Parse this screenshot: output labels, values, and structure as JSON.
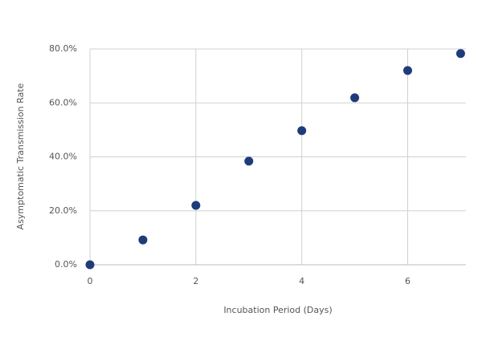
{
  "chart_data": {
    "type": "scatter",
    "x_label": "Incubation Period (Days)",
    "y_label": "Asymptomatic Transmission Rate",
    "series": [
      {
        "color": "#1f3c7a",
        "x": [
          0,
          1,
          2,
          3,
          4,
          5,
          6,
          7
        ],
        "values": [
          0,
          9.2,
          22.0,
          38.4,
          49.7,
          61.9,
          72.0,
          78.3
        ]
      }
    ],
    "xlim": [
      0,
      7.1
    ],
    "xticks": [
      0,
      2,
      4,
      6
    ],
    "ylim": [
      0,
      80
    ],
    "yticks": [
      {
        "value": 0,
        "label": "0.0%"
      },
      {
        "value": 20,
        "label": "20.0%"
      },
      {
        "value": 40,
        "label": "40.0%"
      },
      {
        "value": 60,
        "label": "60.0%"
      },
      {
        "value": 80,
        "label": "80.0%"
      }
    ],
    "grid": true
  }
}
